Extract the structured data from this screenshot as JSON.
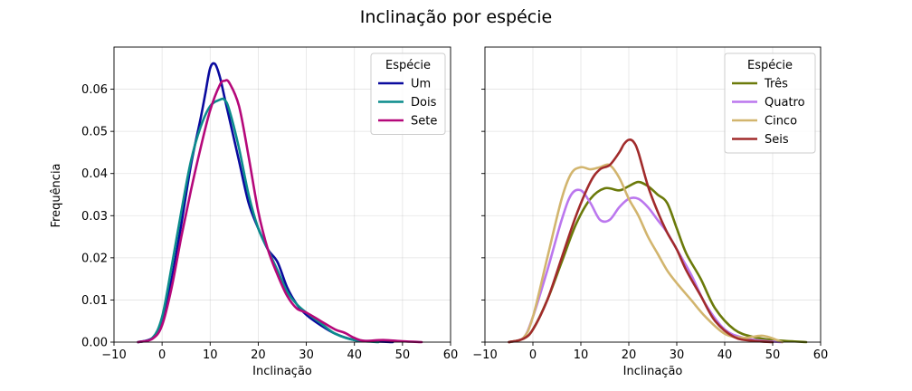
{
  "figure": {
    "title": "Inclinação por espécie",
    "ylabel": "Frequência"
  },
  "chart_data": [
    {
      "type": "line",
      "xlabel": "Inclinação",
      "xlim": [
        -10,
        60
      ],
      "ylim": [
        0,
        0.07
      ],
      "xticks": [
        -10,
        0,
        10,
        20,
        30,
        40,
        50,
        60
      ],
      "yticks": [
        0.0,
        0.01,
        0.02,
        0.03,
        0.04,
        0.05,
        0.06
      ],
      "ytick_labels": [
        "0.00",
        "0.01",
        "0.02",
        "0.03",
        "0.04",
        "0.05",
        "0.06"
      ],
      "grid": true,
      "legend": {
        "title": "Espécie",
        "position": "top-right"
      },
      "series": [
        {
          "name": "Um",
          "color": "#0a0a9e",
          "x": [
            -5,
            -2,
            0,
            2,
            4,
            6,
            8,
            9,
            10,
            11,
            12,
            13,
            14,
            16,
            18,
            20,
            22,
            24,
            26,
            28,
            30,
            33,
            36,
            40,
            44,
            48
          ],
          "y": [
            0.0,
            0.001,
            0.005,
            0.015,
            0.028,
            0.042,
            0.053,
            0.059,
            0.065,
            0.066,
            0.063,
            0.058,
            0.053,
            0.043,
            0.033,
            0.027,
            0.022,
            0.019,
            0.013,
            0.009,
            0.0065,
            0.004,
            0.002,
            0.0005,
            0.0002,
            0.0
          ]
        },
        {
          "name": "Dois",
          "color": "#0c8c8c",
          "x": [
            -5,
            -2,
            0,
            2,
            4,
            6,
            8,
            10,
            12,
            13,
            14,
            16,
            18,
            20,
            22,
            24,
            26,
            28,
            30,
            33,
            36,
            40,
            45
          ],
          "y": [
            0.0,
            0.001,
            0.006,
            0.018,
            0.031,
            0.043,
            0.051,
            0.056,
            0.0575,
            0.0575,
            0.055,
            0.046,
            0.035,
            0.027,
            0.022,
            0.017,
            0.012,
            0.009,
            0.007,
            0.0045,
            0.002,
            0.0005,
            0.0
          ]
        },
        {
          "name": "Sete",
          "color": "#b5087a",
          "x": [
            -5,
            -2,
            0,
            2,
            4,
            6,
            8,
            10,
            12,
            13,
            14,
            16,
            18,
            20,
            22,
            24,
            26,
            28,
            30,
            33,
            36,
            38,
            40,
            42,
            46,
            50,
            54
          ],
          "y": [
            0.0,
            0.0008,
            0.004,
            0.013,
            0.025,
            0.036,
            0.046,
            0.055,
            0.061,
            0.062,
            0.0615,
            0.056,
            0.044,
            0.031,
            0.022,
            0.016,
            0.011,
            0.008,
            0.007,
            0.005,
            0.003,
            0.0022,
            0.001,
            0.0003,
            0.0005,
            0.0002,
            0.0
          ]
        }
      ]
    },
    {
      "type": "line",
      "xlabel": "Inclinação",
      "xlim": [
        -10,
        60
      ],
      "ylim": [
        0,
        0.07
      ],
      "xticks": [
        -10,
        0,
        10,
        20,
        30,
        40,
        50,
        60
      ],
      "yticks": [
        0.0,
        0.01,
        0.02,
        0.03,
        0.04,
        0.05,
        0.06
      ],
      "grid": true,
      "legend": {
        "title": "Espécie",
        "position": "top-right"
      },
      "series": [
        {
          "name": "Três",
          "color": "#6b7a0a",
          "x": [
            -5,
            -2,
            0,
            3,
            6,
            9,
            12,
            15,
            18,
            20,
            22,
            24,
            26,
            28,
            30,
            32,
            35,
            38,
            42,
            46,
            50,
            54,
            57
          ],
          "y": [
            0.0,
            0.0008,
            0.003,
            0.01,
            0.019,
            0.028,
            0.034,
            0.0365,
            0.036,
            0.037,
            0.038,
            0.037,
            0.035,
            0.033,
            0.027,
            0.021,
            0.015,
            0.008,
            0.003,
            0.0012,
            0.0005,
            0.0002,
            0.0
          ]
        },
        {
          "name": "Quatro",
          "color": "#bb77ee",
          "x": [
            -5,
            -2,
            0,
            3,
            6,
            8,
            10,
            12,
            14,
            16,
            18,
            20,
            22,
            24,
            26,
            28,
            30,
            33,
            36,
            40,
            44,
            48,
            52
          ],
          "y": [
            0.0,
            0.001,
            0.006,
            0.017,
            0.029,
            0.035,
            0.036,
            0.033,
            0.029,
            0.029,
            0.032,
            0.034,
            0.034,
            0.032,
            0.029,
            0.026,
            0.022,
            0.016,
            0.009,
            0.003,
            0.001,
            0.0003,
            0.0
          ]
        },
        {
          "name": "Cinco",
          "color": "#d2b56e",
          "x": [
            -5,
            -2,
            0,
            3,
            6,
            8,
            10,
            12,
            14,
            16,
            18,
            20,
            22,
            24,
            26,
            28,
            30,
            33,
            36,
            40,
            44,
            48,
            52
          ],
          "y": [
            0.0,
            0.001,
            0.006,
            0.02,
            0.034,
            0.04,
            0.0415,
            0.041,
            0.0415,
            0.042,
            0.039,
            0.034,
            0.03,
            0.025,
            0.021,
            0.017,
            0.014,
            0.01,
            0.006,
            0.002,
            0.001,
            0.0015,
            0.0
          ]
        },
        {
          "name": "Seis",
          "color": "#a12b2b",
          "x": [
            -5,
            -2,
            0,
            3,
            6,
            9,
            12,
            14,
            16,
            18,
            19,
            20,
            21,
            22,
            24,
            26,
            28,
            30,
            32,
            35,
            38,
            42,
            46,
            50
          ],
          "y": [
            0.0,
            0.0008,
            0.003,
            0.01,
            0.02,
            0.03,
            0.038,
            0.041,
            0.042,
            0.045,
            0.047,
            0.048,
            0.0475,
            0.045,
            0.037,
            0.031,
            0.026,
            0.022,
            0.017,
            0.011,
            0.005,
            0.0012,
            0.0003,
            0.0
          ]
        }
      ]
    }
  ]
}
